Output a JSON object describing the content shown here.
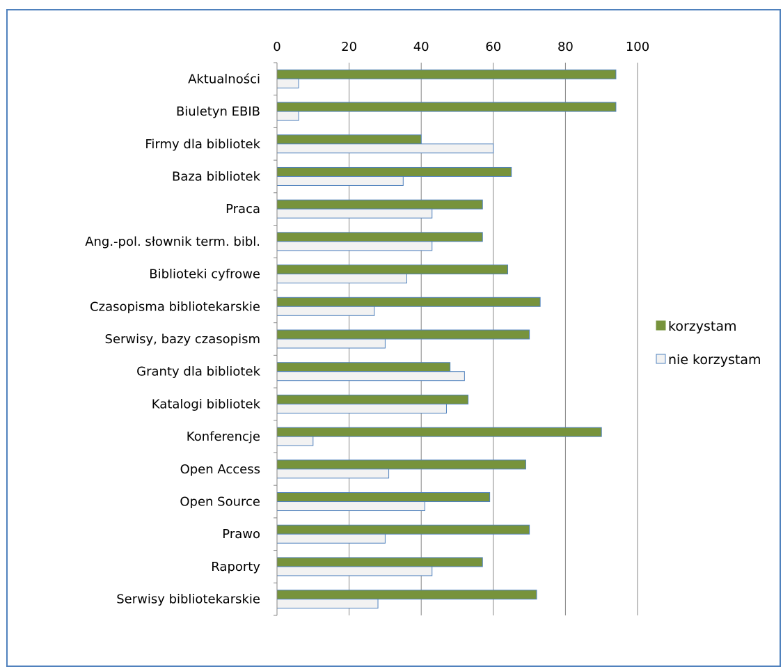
{
  "chart_data": {
    "type": "bar",
    "orientation": "horizontal",
    "title": "",
    "xlabel": "",
    "ylabel": "",
    "xlim": [
      0,
      100
    ],
    "x_ticks": [
      0,
      20,
      40,
      60,
      80,
      100
    ],
    "x_tick_labels": [
      "0",
      "20",
      "40",
      "60",
      "80",
      "100"
    ],
    "grid": "vertical",
    "legend_position": "right",
    "categories": [
      "Aktualności",
      "Biuletyn EBIB",
      "Firmy dla bibliotek",
      "Baza bibliotek",
      "Praca",
      "Ang.-pol. słownik term. bibl.",
      "Biblioteki cyfrowe",
      "Czasopisma bibliotekarskie",
      "Serwisy, bazy czasopism",
      "Granty dla bibliotek",
      "Katalogi bibliotek",
      "Konferencje",
      "Open Access",
      "Open Source",
      "Prawo",
      "Raporty",
      "Serwisy bibliotekarskie"
    ],
    "series": [
      {
        "name": "korzystam",
        "color": "#77933c",
        "border": "#4f81bd",
        "values": [
          94,
          94,
          40,
          65,
          57,
          57,
          64,
          73,
          70,
          48,
          53,
          90,
          69,
          59,
          70,
          57,
          72
        ]
      },
      {
        "name": "nie korzystam",
        "color": "#f2f2f2",
        "border": "#4f81bd",
        "values": [
          6,
          6,
          60,
          35,
          43,
          43,
          36,
          27,
          30,
          52,
          47,
          10,
          31,
          41,
          30,
          43,
          28
        ]
      }
    ]
  }
}
